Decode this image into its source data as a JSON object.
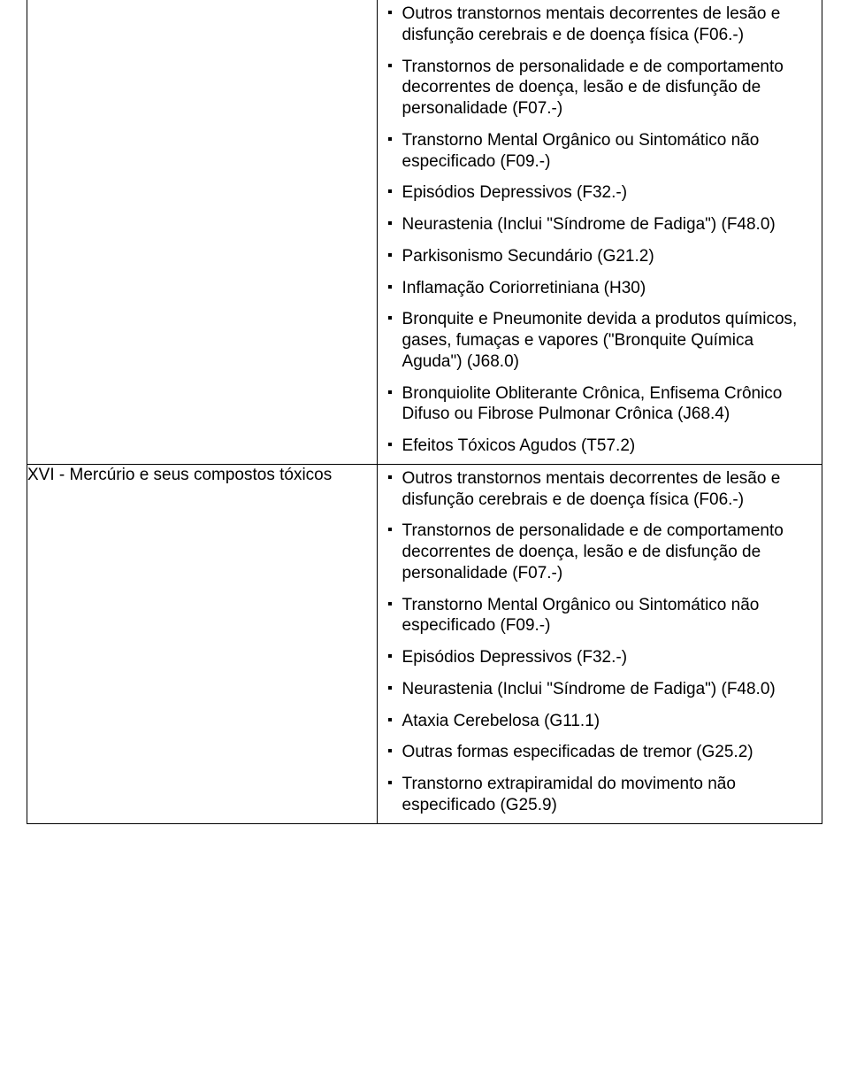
{
  "rows": [
    {
      "left": "",
      "items": [
        "Outros transtornos mentais decorrentes de lesão e disfunção cerebrais e de doença física (F06.-)",
        "Transtornos de personalidade e de comportamento decorrentes de doença, lesão e de disfunção de personalidade (F07.-)",
        "Transtorno Mental Orgânico ou Sintomático não especificado (F09.-)",
        "Episódios Depressivos (F32.-)",
        "Neurastenia (Inclui \"Síndrome de Fadiga\") (F48.0)",
        "Parkisonismo Secundário (G21.2)",
        "Inflamação Coriorretiniana (H30)",
        "Bronquite e Pneumonite devida a produtos químicos, gases, fumaças e vapores (\"Bronquite Química Aguda\") (J68.0)",
        "Bronquiolite Obliterante Crônica, Enfisema Crônico Difuso ou Fibrose Pulmonar Crônica (J68.4)",
        "Efeitos Tóxicos Agudos (T57.2)"
      ]
    },
    {
      "left": "XVI - Mercúrio e seus compostos tóxicos",
      "items": [
        "Outros transtornos mentais decorrentes de lesão e disfunção cerebrais e de doença física (F06.-)",
        "Transtornos de personalidade e de comportamento decorrentes de doença, lesão e de disfunção de personalidade (F07.-)",
        "Transtorno Mental Orgânico ou Sintomático não especificado (F09.-)",
        "Episódios Depressivos (F32.-)",
        "Neurastenia (Inclui \"Síndrome de Fadiga\") (F48.0)",
        "Ataxia Cerebelosa (G11.1)",
        "Outras formas especificadas de tremor (G25.2)",
        "Transtorno extrapiramidal do movimento não especificado (G25.9)"
      ]
    }
  ]
}
